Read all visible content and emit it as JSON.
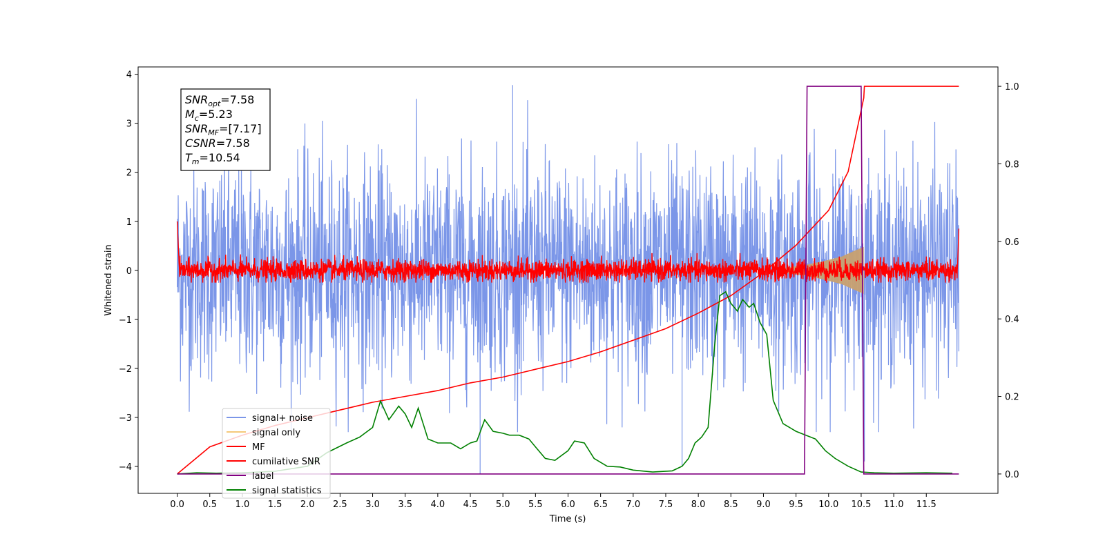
{
  "chart_data": {
    "type": "line",
    "title": "",
    "xlabel": "Time (s)",
    "ylabel": "Whitened strain",
    "ylabel_right": "",
    "xlim": [
      -0.6,
      12.6
    ],
    "ylim": [
      -4.55,
      4.15
    ],
    "ylim_right": [
      -0.05,
      1.05
    ],
    "x_ticks": [
      "0.0",
      "0.5",
      "1.0",
      "1.5",
      "2.0",
      "2.5",
      "3.0",
      "3.5",
      "4.0",
      "4.5",
      "5.0",
      "5.5",
      "6.0",
      "6.5",
      "7.0",
      "7.5",
      "8.0",
      "8.5",
      "9.0",
      "9.5",
      "10.0",
      "10.5",
      "11.0",
      "11.5"
    ],
    "y_ticks": [
      "4",
      "3",
      "2",
      "1",
      "0",
      "−1",
      "−2",
      "−3",
      "−4"
    ],
    "y_ticks_right": [
      "1.0",
      "0.8",
      "0.6",
      "0.4",
      "0.2",
      "0.0"
    ],
    "grid": false,
    "legend_position": "lower-left",
    "annotation": {
      "lines": [
        {
          "sym": "SNR",
          "sub": "opt",
          "val": "=7.58"
        },
        {
          "sym": "M",
          "sub": "c",
          "val": "=5.23"
        },
        {
          "sym": "SNR",
          "sub": "MF",
          "val": "=[7.17]"
        },
        {
          "sym": "CSNR",
          "sub": "",
          "val": "=7.58"
        },
        {
          "sym": "T",
          "sub": "m",
          "val": "=10.54"
        }
      ]
    },
    "series": [
      {
        "name": "signal+ noise",
        "color": "#7b96e8",
        "axis": "left",
        "description_values": {
          "t_start": 0.0,
          "t_end": 12.0,
          "amplitude_range": [
            -4.15,
            3.8
          ]
        }
      },
      {
        "name": "signal only",
        "color": "#f5c97a",
        "axis": "left",
        "envelope": {
          "x": [
            9.3,
            9.6,
            9.9,
            10.2,
            10.4,
            10.54
          ],
          "amp": [
            0.05,
            0.1,
            0.18,
            0.28,
            0.4,
            0.48
          ]
        }
      },
      {
        "name": "MF",
        "color": "#ff0000",
        "axis": "left",
        "amplitude_range": [
          -0.25,
          0.35
        ]
      },
      {
        "name": "cumilative SNR",
        "color": "#ff0000",
        "axis": "right",
        "x": [
          0.0,
          0.5,
          1.0,
          1.5,
          2.0,
          2.5,
          3.0,
          3.5,
          4.0,
          4.5,
          5.0,
          5.5,
          6.0,
          6.5,
          7.0,
          7.5,
          8.0,
          8.5,
          9.0,
          9.5,
          10.0,
          10.3,
          10.54,
          10.55,
          12.0
        ],
        "y": [
          0.0,
          0.07,
          0.1,
          0.125,
          0.145,
          0.165,
          0.185,
          0.2,
          0.215,
          0.235,
          0.25,
          0.27,
          0.29,
          0.315,
          0.345,
          0.375,
          0.415,
          0.46,
          0.52,
          0.59,
          0.68,
          0.78,
          0.97,
          1.0,
          1.0
        ]
      },
      {
        "name": "label",
        "color": "#800080",
        "axis": "right",
        "x": [
          0.0,
          9.63,
          9.67,
          10.5,
          10.54,
          12.0
        ],
        "y": [
          0.0,
          0.0,
          1.0,
          1.0,
          0.0,
          0.0
        ]
      },
      {
        "name": "signal statistics",
        "color": "#008000",
        "axis": "right",
        "x": [
          0.0,
          0.3,
          0.6,
          1.0,
          1.5,
          2.0,
          2.3,
          2.6,
          2.8,
          3.0,
          3.12,
          3.25,
          3.4,
          3.5,
          3.6,
          3.7,
          3.85,
          4.0,
          4.2,
          4.35,
          4.5,
          4.6,
          4.72,
          4.85,
          5.0,
          5.1,
          5.25,
          5.4,
          5.5,
          5.65,
          5.8,
          6.0,
          6.1,
          6.25,
          6.4,
          6.6,
          6.8,
          7.0,
          7.3,
          7.6,
          7.75,
          7.85,
          7.95,
          8.05,
          8.15,
          8.25,
          8.33,
          8.42,
          8.5,
          8.6,
          8.68,
          8.78,
          8.85,
          8.95,
          9.05,
          9.15,
          9.3,
          9.5,
          9.65,
          9.8,
          9.95,
          10.1,
          10.3,
          10.5,
          10.7,
          11.0,
          11.5,
          11.9
        ],
        "y": [
          0.0,
          0.003,
          0.002,
          0.003,
          0.007,
          0.02,
          0.055,
          0.08,
          0.095,
          0.12,
          0.188,
          0.14,
          0.175,
          0.155,
          0.12,
          0.17,
          0.09,
          0.08,
          0.08,
          0.065,
          0.08,
          0.085,
          0.14,
          0.11,
          0.105,
          0.1,
          0.1,
          0.09,
          0.07,
          0.04,
          0.035,
          0.06,
          0.085,
          0.08,
          0.04,
          0.02,
          0.018,
          0.01,
          0.005,
          0.008,
          0.02,
          0.04,
          0.08,
          0.095,
          0.12,
          0.33,
          0.46,
          0.47,
          0.44,
          0.42,
          0.45,
          0.43,
          0.44,
          0.39,
          0.36,
          0.19,
          0.13,
          0.11,
          0.1,
          0.09,
          0.06,
          0.04,
          0.02,
          0.005,
          0.003,
          0.002,
          0.003,
          0.002
        ]
      }
    ]
  }
}
